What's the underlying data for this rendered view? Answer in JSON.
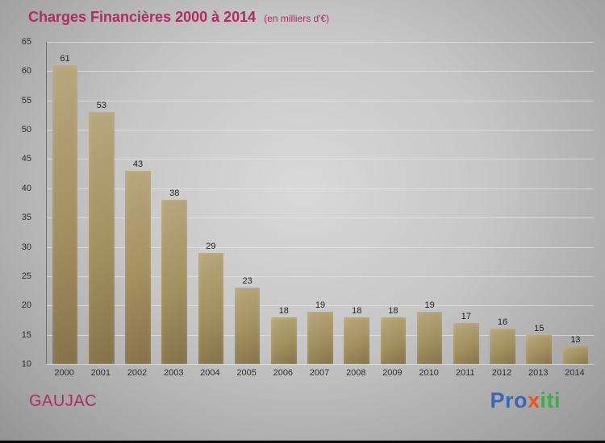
{
  "title": {
    "main": "Charges Financières 2000 à 2014",
    "unit": "(en milliers d'€)"
  },
  "footer": {
    "commune": "GAUJAC",
    "brand": [
      {
        "text": "Pro",
        "color": "#3a67b5"
      },
      {
        "text": "x",
        "color": "#e8531e"
      },
      {
        "text": "iti",
        "color": "#3fae49"
      }
    ]
  },
  "colors": {
    "title": "#b12a62",
    "bar_light": "#b9a87f",
    "bar_dark": "#85714a",
    "tick_text": "#2e2e2e"
  },
  "chart_data": {
    "type": "bar",
    "title": "Charges Financières 2000 à 2014",
    "subtitle": "(en milliers d'€)",
    "categories": [
      "2000",
      "2001",
      "2002",
      "2003",
      "2004",
      "2005",
      "2006",
      "2007",
      "2008",
      "2009",
      "2010",
      "2011",
      "2012",
      "2013",
      "2014"
    ],
    "values": [
      61,
      53,
      43,
      38,
      29,
      23,
      18,
      19,
      18,
      18,
      19,
      17,
      16,
      15,
      13
    ],
    "xlabel": "",
    "ylabel": "",
    "ylim": [
      10,
      65
    ],
    "ytick_step": 5,
    "grid": true,
    "legend": "none"
  }
}
